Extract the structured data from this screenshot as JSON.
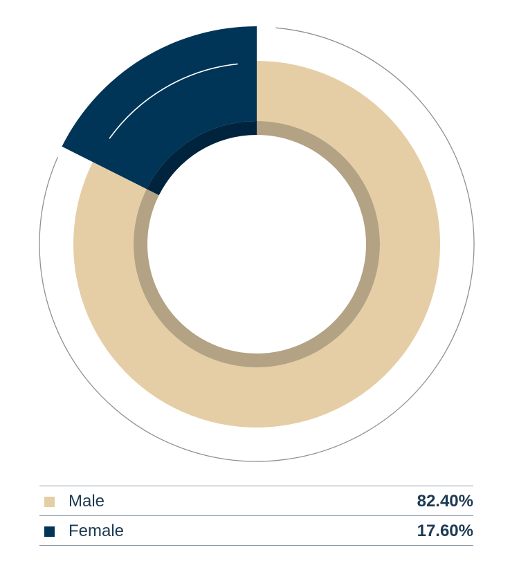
{
  "chart_data": {
    "type": "pie",
    "variant": "donut",
    "title": "",
    "series": [
      {
        "name": "Male",
        "value": 82.4,
        "label": "82.40%",
        "color": "#e5cea5",
        "inner_color": "#b3a284"
      },
      {
        "name": "Female",
        "value": 17.6,
        "label": "17.60%",
        "color": "#003557",
        "inner_color": "#00243d"
      }
    ],
    "legend_position": "bottom"
  }
}
